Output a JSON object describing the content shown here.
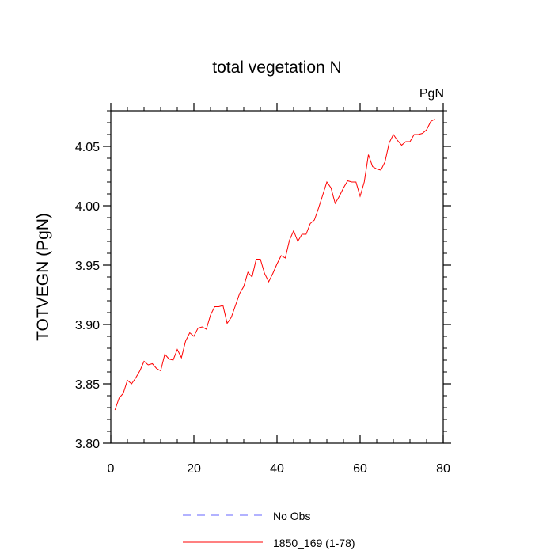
{
  "chart_data": {
    "type": "line",
    "title": "total vegetation N",
    "units_label": "PgN",
    "ylabel": "TOTVEGN  (PgN)",
    "xlabel": "",
    "xlim": [
      0,
      80
    ],
    "ylim": [
      3.8,
      4.08
    ],
    "x_ticks": [
      0,
      20,
      40,
      60,
      80
    ],
    "x_tick_labels": [
      "0",
      "20",
      "40",
      "60",
      "80"
    ],
    "y_ticks": [
      3.8,
      3.85,
      3.9,
      3.95,
      4.0,
      4.05
    ],
    "y_tick_labels": [
      "3.80",
      "3.85",
      "3.90",
      "3.95",
      "4.00",
      "4.05"
    ],
    "grid": false,
    "legend_position": "bottom-center",
    "series": [
      {
        "name": "No Obs",
        "color": "#6666ff",
        "style": "dashed",
        "x": [],
        "y": []
      },
      {
        "name": "1850_169 (1-78)",
        "color": "#ff0000",
        "style": "solid",
        "x": [
          1,
          2,
          3,
          4,
          5,
          6,
          7,
          8,
          9,
          10,
          11,
          12,
          13,
          14,
          15,
          16,
          17,
          18,
          19,
          20,
          21,
          22,
          23,
          24,
          25,
          26,
          27,
          28,
          29,
          30,
          31,
          32,
          33,
          34,
          35,
          36,
          37,
          38,
          39,
          40,
          41,
          42,
          43,
          44,
          45,
          46,
          47,
          48,
          49,
          50,
          51,
          52,
          53,
          54,
          55,
          56,
          57,
          58,
          59,
          60,
          61,
          62,
          63,
          64,
          65,
          66,
          67,
          68,
          69,
          70,
          71,
          72,
          73,
          74,
          75,
          76,
          77,
          78
        ],
        "y": [
          3.828,
          3.838,
          3.842,
          3.853,
          3.85,
          3.855,
          3.861,
          3.869,
          3.866,
          3.867,
          3.863,
          3.861,
          3.875,
          3.871,
          3.87,
          3.879,
          3.872,
          3.886,
          3.893,
          3.89,
          3.897,
          3.898,
          3.896,
          3.908,
          3.915,
          3.915,
          3.916,
          3.901,
          3.906,
          3.916,
          3.926,
          3.932,
          3.944,
          3.94,
          3.955,
          3.955,
          3.943,
          3.936,
          3.943,
          3.951,
          3.958,
          3.956,
          3.971,
          3.979,
          3.97,
          3.976,
          3.976,
          3.985,
          3.988,
          3.998,
          4.009,
          4.02,
          4.015,
          4.002,
          4.008,
          4.015,
          4.021,
          4.02,
          4.02,
          4.008,
          4.02,
          4.043,
          4.033,
          4.031,
          4.03,
          4.037,
          4.053,
          4.06,
          4.055,
          4.051,
          4.054,
          4.054,
          4.06,
          4.06,
          4.061,
          4.064,
          4.071,
          4.073
        ]
      }
    ]
  }
}
